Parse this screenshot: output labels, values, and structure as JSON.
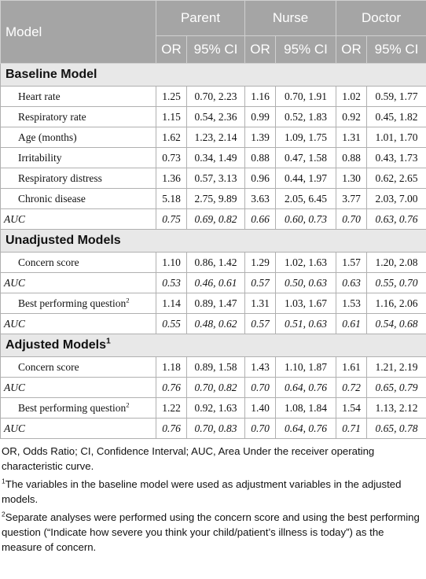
{
  "table": {
    "header": {
      "model": "Model",
      "groups": [
        "Parent",
        "Nurse",
        "Doctor"
      ],
      "subcols": [
        "OR",
        "95% CI",
        "OR",
        "95% CI",
        "OR",
        "95% CI"
      ]
    },
    "sections": [
      {
        "title": "Baseline Model",
        "models": [
          {
            "rows": [
              {
                "label": "Heart rate",
                "cells": [
                  "1.25",
                  "0.70, 2.23",
                  "1.16",
                  "0.70, 1.91",
                  "1.02",
                  "0.59, 1.77"
                ]
              },
              {
                "label": "Respiratory rate",
                "cells": [
                  "1.15",
                  "0.54, 2.36",
                  "0.99",
                  "0.52, 1.83",
                  "0.92",
                  "0.45, 1.82"
                ]
              },
              {
                "label": "Age (months)",
                "cells": [
                  "1.62",
                  "1.23, 2.14",
                  "1.39",
                  "1.09, 1.75",
                  "1.31",
                  "1.01, 1.70"
                ]
              },
              {
                "label": "Irritability",
                "cells": [
                  "0.73",
                  "0.34, 1.49",
                  "0.88",
                  "0.47, 1.58",
                  "0.88",
                  "0.43, 1.73"
                ]
              },
              {
                "label": "Respiratory distress",
                "cells": [
                  "1.36",
                  "0.57, 3.13",
                  "0.96",
                  "0.44, 1.97",
                  "1.30",
                  "0.62, 2.65"
                ]
              },
              {
                "label": "Chronic disease",
                "cells": [
                  "5.18",
                  "2.75, 9.89",
                  "3.63",
                  "2.05, 6.45",
                  "3.77",
                  "2.03, 7.00"
                ]
              }
            ],
            "auc": {
              "label": "AUC",
              "cells": [
                "0.75",
                "0.69, 0.82",
                "0.66",
                "0.60, 0.73",
                "0.70",
                "0.63, 0.76"
              ]
            }
          }
        ]
      },
      {
        "title": "Unadjusted Models",
        "models": [
          {
            "rows": [
              {
                "label": "Concern score",
                "cells": [
                  "1.10",
                  "0.86, 1.42",
                  "1.29",
                  "1.02, 1.63",
                  "1.57",
                  "1.20, 2.08"
                ]
              }
            ],
            "auc": {
              "label": "AUC",
              "cells": [
                "0.53",
                "0.46, 0.61",
                "0.57",
                "0.50, 0.63",
                "0.63",
                "0.55, 0.70"
              ]
            }
          },
          {
            "rows": [
              {
                "label": "Best performing question",
                "sup": "2",
                "cells": [
                  "1.14",
                  "0.89, 1.47",
                  "1.31",
                  "1.03, 1.67",
                  "1.53",
                  "1.16, 2.06"
                ]
              }
            ],
            "auc": {
              "label": "AUC",
              "cells": [
                "0.55",
                "0.48, 0.62",
                "0.57",
                "0.51, 0.63",
                "0.61",
                "0.54, 0.68"
              ]
            }
          }
        ]
      },
      {
        "title": "Adjusted Models",
        "sup": "1",
        "models": [
          {
            "rows": [
              {
                "label": "Concern score",
                "cells": [
                  "1.18",
                  "0.89, 1.58",
                  "1.43",
                  "1.10, 1.87",
                  "1.61",
                  "1.21, 2.19"
                ]
              }
            ],
            "auc": {
              "label": "AUC",
              "cells": [
                "0.76",
                "0.70, 0.82",
                "0.70",
                "0.64, 0.76",
                "0.72",
                "0.65, 0.79"
              ]
            }
          },
          {
            "rows": [
              {
                "label": "Best performing question",
                "sup": "2",
                "cells": [
                  "1.22",
                  "0.92, 1.63",
                  "1.40",
                  "1.08, 1.84",
                  "1.54",
                  "1.13, 2.12"
                ]
              }
            ],
            "auc": {
              "label": "AUC",
              "cells": [
                "0.76",
                "0.70, 0.83",
                "0.70",
                "0.64, 0.76",
                "0.71",
                "0.65, 0.78"
              ]
            }
          }
        ]
      }
    ]
  },
  "footnotes": [
    {
      "text": "OR, Odds Ratio; CI, Confidence Interval; AUC, Area Under the receiver operating characteristic curve."
    },
    {
      "sup": "1",
      "text": "The variables in the baseline model were used as adjustment variables in the adjusted models."
    },
    {
      "sup": "2",
      "text": "Separate analyses were performed using the concern score and using the best performing question (“Indicate how severe you think your child/patient’s illness is today”) as the measure of concern."
    }
  ]
}
